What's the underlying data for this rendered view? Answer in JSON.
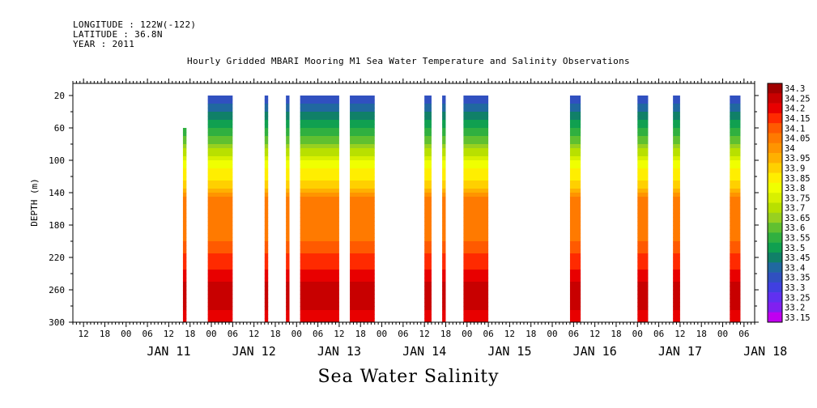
{
  "header": {
    "longitude": "LONGITUDE : 122W(-122)",
    "latitude": "LATITUDE : 36.8N",
    "year": "YEAR : 2011"
  },
  "chart_data": {
    "type": "heatmap",
    "title": "Hourly Gridded MBARI Mooring M1 Sea Water Temperature and Salinity Observations",
    "bottom_label": "Sea Water Salinity",
    "ylabel": "DEPTH (m)",
    "y_inverted": true,
    "ylim": [
      300,
      5
    ],
    "y_ticks": [
      20,
      60,
      100,
      140,
      180,
      220,
      260,
      300
    ],
    "x_start": "2011-01-10T09:00",
    "x_end": "2011-01-18T09:00",
    "x_hour_ticks": [
      "12",
      "18",
      "00",
      "06",
      "12",
      "18",
      "00",
      "06",
      "12",
      "18",
      "00",
      "06",
      "12",
      "18",
      "00",
      "06",
      "12",
      "18",
      "00",
      "06",
      "12",
      "18",
      "00",
      "06",
      "12",
      "18",
      "00",
      "06",
      "12",
      "18",
      "00",
      "06"
    ],
    "x_day_labels": [
      "JAN 11",
      "JAN 12",
      "JAN 13",
      "JAN 14",
      "JAN 15",
      "JAN 16",
      "JAN 17",
      "JAN 18"
    ],
    "colorbar_levels": [
      "34.3",
      "34.25",
      "34.2",
      "34.15",
      "34.1",
      "34.05",
      "34",
      "33.95",
      "33.9",
      "33.85",
      "33.8",
      "33.75",
      "33.7",
      "33.65",
      "33.6",
      "33.55",
      "33.5",
      "33.45",
      "33.4",
      "33.35",
      "33.3",
      "33.25",
      "33.2",
      "33.15"
    ],
    "colorbar_colors": [
      "#a00000",
      "#c80000",
      "#e80000",
      "#ff2a00",
      "#ff5a00",
      "#ff7a00",
      "#ff9400",
      "#ffb000",
      "#ffd000",
      "#ffee00",
      "#f0ff00",
      "#d8f000",
      "#b8e000",
      "#98d020",
      "#60c030",
      "#30b040",
      "#10a050",
      "#108068",
      "#2068a0",
      "#3050c0",
      "#4040e0",
      "#6030f0",
      "#8020f0",
      "#c000f0"
    ],
    "data_blocks": [
      {
        "start": "2011-01-11T16:00",
        "end": "2011-01-11T17:00",
        "top_depth": 60
      },
      {
        "start": "2011-01-11T23:00",
        "end": "2011-01-12T06:00",
        "top_depth": 20
      },
      {
        "start": "2011-01-12T15:00",
        "end": "2011-01-12T16:00",
        "top_depth": 20
      },
      {
        "start": "2011-01-12T21:00",
        "end": "2011-01-12T22:00",
        "top_depth": 20
      },
      {
        "start": "2011-01-13T01:00",
        "end": "2011-01-13T12:00",
        "top_depth": 20
      },
      {
        "start": "2011-01-13T15:00",
        "end": "2011-01-13T22:00",
        "top_depth": 20
      },
      {
        "start": "2011-01-14T12:00",
        "end": "2011-01-14T14:00",
        "top_depth": 20
      },
      {
        "start": "2011-01-14T17:00",
        "end": "2011-01-14T18:00",
        "top_depth": 20
      },
      {
        "start": "2011-01-14T23:00",
        "end": "2011-01-15T06:00",
        "top_depth": 20
      },
      {
        "start": "2011-01-16T05:00",
        "end": "2011-01-16T08:00",
        "top_depth": 20
      },
      {
        "start": "2011-01-17T00:00",
        "end": "2011-01-17T03:00",
        "top_depth": 20
      },
      {
        "start": "2011-01-17T10:00",
        "end": "2011-01-17T12:00",
        "top_depth": 20
      },
      {
        "start": "2011-01-18T02:00",
        "end": "2011-01-18T05:00",
        "top_depth": 20
      }
    ],
    "depth_profile": [
      {
        "depth": 20,
        "value": 33.35
      },
      {
        "depth": 40,
        "value": 33.45
      },
      {
        "depth": 60,
        "value": 33.55
      },
      {
        "depth": 80,
        "value": 33.65
      },
      {
        "depth": 95,
        "value": 33.75
      },
      {
        "depth": 110,
        "value": 33.85
      },
      {
        "depth": 125,
        "value": 33.9
      },
      {
        "depth": 135,
        "value": 33.95
      },
      {
        "depth": 145,
        "value": 34.05
      },
      {
        "depth": 200,
        "value": 34.1
      },
      {
        "depth": 215,
        "value": 34.15
      },
      {
        "depth": 235,
        "value": 34.2
      },
      {
        "depth": 270,
        "value": 34.3
      },
      {
        "depth": 300,
        "value": 34.2
      }
    ]
  }
}
